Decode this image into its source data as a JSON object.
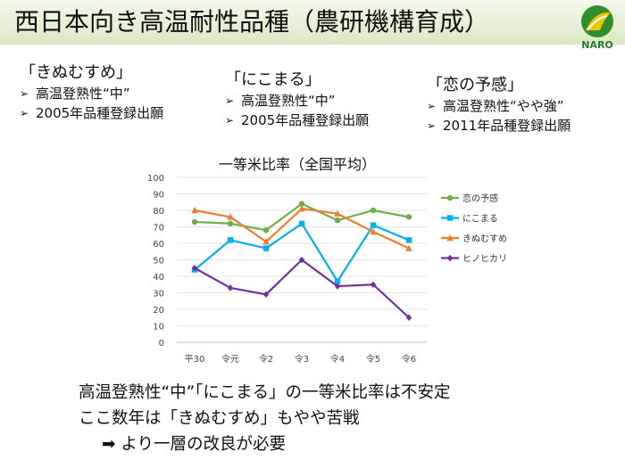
{
  "header": {
    "title": "西日本向き高温耐性品種（農研機構育成）",
    "logo_text": "NARO"
  },
  "varieties": [
    {
      "name": "「きぬむすめ」",
      "items": [
        "高温登熟性“中”",
        "2005年品種登録出願"
      ]
    },
    {
      "name": "「にこまる」",
      "items": [
        "高温登熟性“中”",
        "2005年品種登録出願"
      ]
    },
    {
      "name": "「恋の予感」",
      "items": [
        "高温登熟性“やや強”",
        "2011年品種登録出願"
      ]
    }
  ],
  "bullet_mark": "➢",
  "chart_data": {
    "type": "line",
    "title": "一等米比率（全国平均）",
    "categories": [
      "平30",
      "令元",
      "令2",
      "令3",
      "令4",
      "令5",
      "令6"
    ],
    "ylim": [
      0,
      100
    ],
    "yticks": [
      0,
      10,
      20,
      30,
      40,
      50,
      60,
      70,
      80,
      90,
      100
    ],
    "legend_position": "right",
    "series": [
      {
        "name": "恋の予感",
        "color": "#70ad47",
        "marker": "circle",
        "values": [
          73,
          72,
          68,
          84,
          74,
          80,
          76
        ]
      },
      {
        "name": "にこまる",
        "color": "#00b0f0",
        "marker": "square",
        "values": [
          44,
          62,
          57,
          72,
          37,
          71,
          62
        ]
      },
      {
        "name": "きぬむすめ",
        "color": "#ed7d31",
        "marker": "triangle",
        "values": [
          80,
          76,
          61,
          81,
          78,
          67,
          57
        ]
      },
      {
        "name": "ヒノヒカリ",
        "color": "#7030a0",
        "marker": "diamond",
        "values": [
          45,
          33,
          29,
          50,
          34,
          35,
          15
        ]
      }
    ]
  },
  "conclusion": {
    "line1": "高温登熟性“中”「にこまる」の一等米比率は不安定",
    "line2": "ここ数年は「きぬむすめ」もやや苦戦",
    "arrow": "➡",
    "line3": "より一層の改良が必要"
  }
}
